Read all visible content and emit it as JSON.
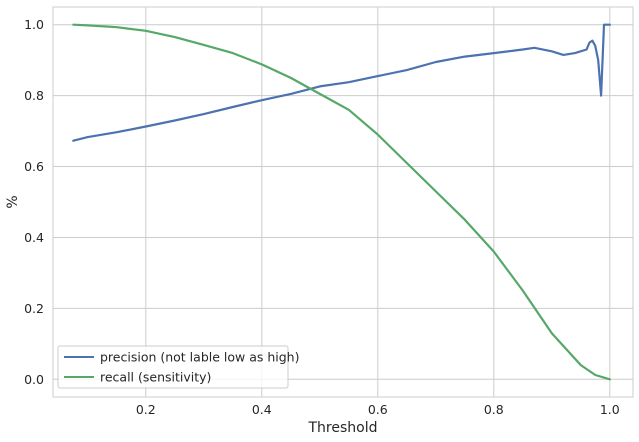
{
  "chart_data": {
    "type": "line",
    "title": "",
    "xlabel": "Threshold",
    "ylabel": "%",
    "xlim": [
      0.04,
      1.04
    ],
    "ylim": [
      -0.05,
      1.05
    ],
    "xticks": [
      "0.2",
      "0.4",
      "0.6",
      "0.8",
      "1.0"
    ],
    "yticks": [
      "0.0",
      "0.2",
      "0.4",
      "0.6",
      "0.8",
      "1.0"
    ],
    "grid": true,
    "legend_position": "lower-left",
    "series": [
      {
        "name": "precision (not lable low as high)",
        "color": "#4c72b0",
        "x": [
          0.075,
          0.1,
          0.15,
          0.2,
          0.25,
          0.3,
          0.35,
          0.4,
          0.45,
          0.5,
          0.55,
          0.6,
          0.65,
          0.7,
          0.75,
          0.8,
          0.85,
          0.87,
          0.9,
          0.92,
          0.94,
          0.96,
          0.965,
          0.97,
          0.975,
          0.98,
          0.985,
          0.99,
          0.995,
          1.0
        ],
        "y": [
          0.673,
          0.683,
          0.697,
          0.713,
          0.73,
          0.748,
          0.768,
          0.787,
          0.805,
          0.826,
          0.838,
          0.855,
          0.872,
          0.895,
          0.91,
          0.92,
          0.93,
          0.935,
          0.925,
          0.915,
          0.92,
          0.93,
          0.95,
          0.955,
          0.94,
          0.9,
          0.8,
          1.0,
          1.0,
          1.0
        ]
      },
      {
        "name": "recall (sensitivity)",
        "color": "#55a868",
        "x": [
          0.075,
          0.1,
          0.15,
          0.2,
          0.25,
          0.3,
          0.35,
          0.4,
          0.45,
          0.5,
          0.55,
          0.6,
          0.65,
          0.7,
          0.75,
          0.8,
          0.85,
          0.9,
          0.95,
          0.975,
          1.0
        ],
        "y": [
          1.0,
          0.998,
          0.993,
          0.983,
          0.965,
          0.943,
          0.92,
          0.888,
          0.85,
          0.805,
          0.76,
          0.69,
          0.61,
          0.53,
          0.45,
          0.36,
          0.25,
          0.13,
          0.04,
          0.012,
          0.0
        ]
      }
    ]
  }
}
